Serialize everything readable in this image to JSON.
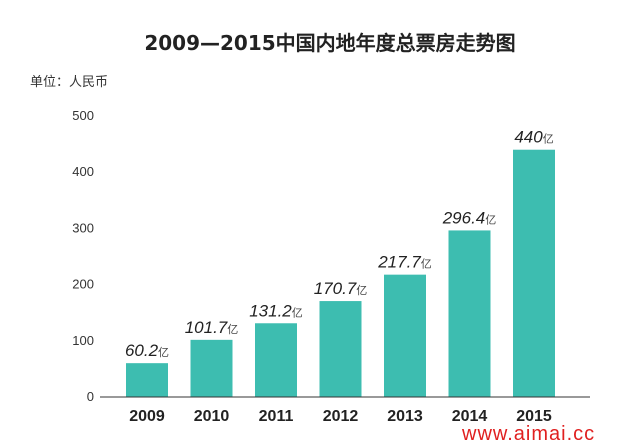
{
  "chart_data": {
    "type": "bar",
    "title": "2009—2015中国内地年度总票房走势图",
    "unit_label": "单位：人民币",
    "categories": [
      "2009",
      "2010",
      "2011",
      "2012",
      "2013",
      "2014",
      "2015"
    ],
    "values": [
      60.2,
      101.7,
      131.2,
      170.7,
      217.7,
      296.4,
      440
    ],
    "data_labels": [
      "60.2",
      "101.7",
      "131.2",
      "170.7",
      "217.7",
      "296.4",
      "440"
    ],
    "value_unit": "亿",
    "yticks": [
      "0",
      "100",
      "200",
      "300",
      "400",
      "500"
    ],
    "ylim": [
      0,
      500
    ],
    "grid": false,
    "legend": "none",
    "bar_color": "#3dbdb0"
  },
  "watermark": "www.aimai.cc"
}
